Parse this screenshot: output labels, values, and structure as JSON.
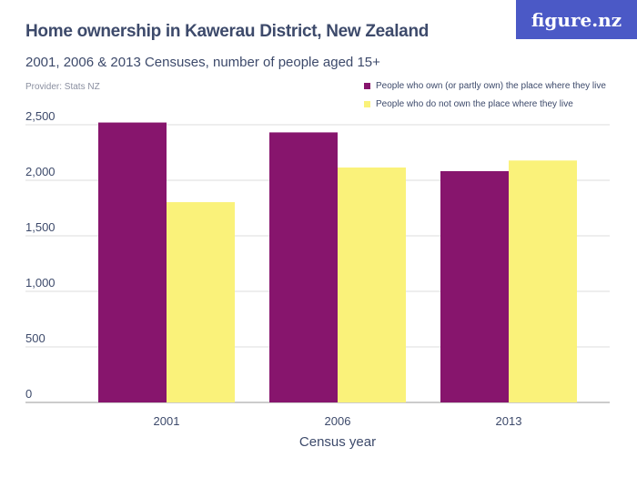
{
  "logo": "figure.nz",
  "title": "Home ownership in Kawerau District, New Zealand",
  "subtitle": "2001, 2006 & 2013 Censuses, number of people aged 15+",
  "provider": "Provider: Stats NZ",
  "chart_data": {
    "type": "bar",
    "categories": [
      "2001",
      "2006",
      "2013"
    ],
    "series": [
      {
        "name": "People who own (or partly own) the place where they live",
        "color": "#87156d",
        "values": [
          2520,
          2431,
          2082
        ]
      },
      {
        "name": "People who do not own the place where they live",
        "color": "#faf27a",
        "values": [
          1803,
          2115,
          2178
        ]
      }
    ],
    "xlabel": "Census year",
    "ylabel": "",
    "ylim": [
      0,
      2500
    ],
    "yticks": [
      0,
      500,
      1000,
      1500,
      2000,
      2500
    ],
    "ytick_labels": [
      "0",
      "500",
      "1,000",
      "1,500",
      "2,000",
      "2,500"
    ],
    "grid": true,
    "legend": "top-right"
  }
}
